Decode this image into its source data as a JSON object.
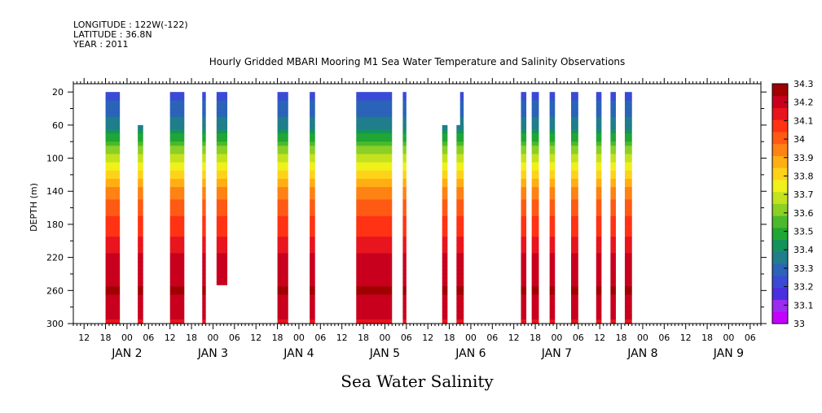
{
  "meta": {
    "longitude": "LONGITUDE : 122W(-122)",
    "latitude": "LATITUDE : 36.8N",
    "year": "YEAR : 2011"
  },
  "chart_data": {
    "type": "heatmap",
    "title": "Hourly Gridded MBARI Mooring M1 Sea Water Temperature and Salinity Observations",
    "xlabel": "Sea Water Salinity",
    "ylabel": "DEPTH (m)",
    "y_axis": {
      "reversed": true,
      "ylim": [
        300,
        10
      ],
      "ticks": [
        20,
        60,
        100,
        140,
        180,
        220,
        260,
        300
      ]
    },
    "x_axis": {
      "unit": "hours since JAN 1 12:00",
      "xlim": [
        -3,
        189
      ],
      "hour_tick_labels": [
        "12",
        "18",
        "00",
        "06",
        "12",
        "18",
        "00",
        "06",
        "12",
        "18",
        "00",
        "06",
        "12",
        "18",
        "00",
        "06",
        "12",
        "18",
        "00",
        "06",
        "12",
        "18",
        "00",
        "06",
        "12",
        "18",
        "00",
        "06",
        "12",
        "18",
        "00",
        "06"
      ],
      "date_labels": [
        "JAN  2",
        "JAN  3",
        "JAN  4",
        "JAN  5",
        "JAN  6",
        "JAN  7",
        "JAN  8",
        "JAN  9"
      ]
    },
    "colorbar": {
      "levels": [
        "33",
        "33.1",
        "33.2",
        "33.3",
        "33.4",
        "33.5",
        "33.6",
        "33.7",
        "33.8",
        "33.9",
        "34",
        "34.1",
        "34.2",
        "34.3"
      ],
      "colors": [
        "#c400ff",
        "#9b2cf0",
        "#4a2fe0",
        "#3a4ad6",
        "#2a63b8",
        "#1f7d8c",
        "#14925d",
        "#1fa634",
        "#4cb92c",
        "#8ccf25",
        "#c4e21f",
        "#f0f01a",
        "#ffd21a",
        "#ffae14",
        "#ff8214",
        "#ff5a14",
        "#ff3214",
        "#e8141e",
        "#c8001e",
        "#a00000"
      ],
      "value_min": 33.0,
      "value_max": 34.35
    },
    "columns": [
      {
        "x0": 6,
        "x1": 10,
        "top": 20
      },
      {
        "x0": 15,
        "x1": 16.5,
        "top": 60
      },
      {
        "x0": 24,
        "x1": 28,
        "top": 20
      },
      {
        "x0": 33,
        "x1": 34,
        "top": 20
      },
      {
        "x0": 37,
        "x1": 40,
        "top": 20,
        "bottom": 253
      },
      {
        "x0": 54,
        "x1": 57,
        "top": 20
      },
      {
        "x0": 63,
        "x1": 64.5,
        "top": 20
      },
      {
        "x0": 76,
        "x1": 86,
        "top": 20
      },
      {
        "x0": 89,
        "x1": 90,
        "top": 20
      },
      {
        "x0": 100,
        "x1": 101.5,
        "top": 60
      },
      {
        "x0": 104,
        "x1": 106,
        "top": 60
      },
      {
        "x0": 105,
        "x1": 106,
        "top": 20
      },
      {
        "x0": 122,
        "x1": 123.5,
        "top": 20
      },
      {
        "x0": 125,
        "x1": 127,
        "top": 20
      },
      {
        "x0": 130,
        "x1": 131.5,
        "top": 20
      },
      {
        "x0": 136,
        "x1": 138,
        "top": 20
      },
      {
        "x0": 143,
        "x1": 144.5,
        "top": 20
      },
      {
        "x0": 147,
        "x1": 148.5,
        "top": 20
      },
      {
        "x0": 151,
        "x1": 153,
        "top": 20
      }
    ]
  }
}
